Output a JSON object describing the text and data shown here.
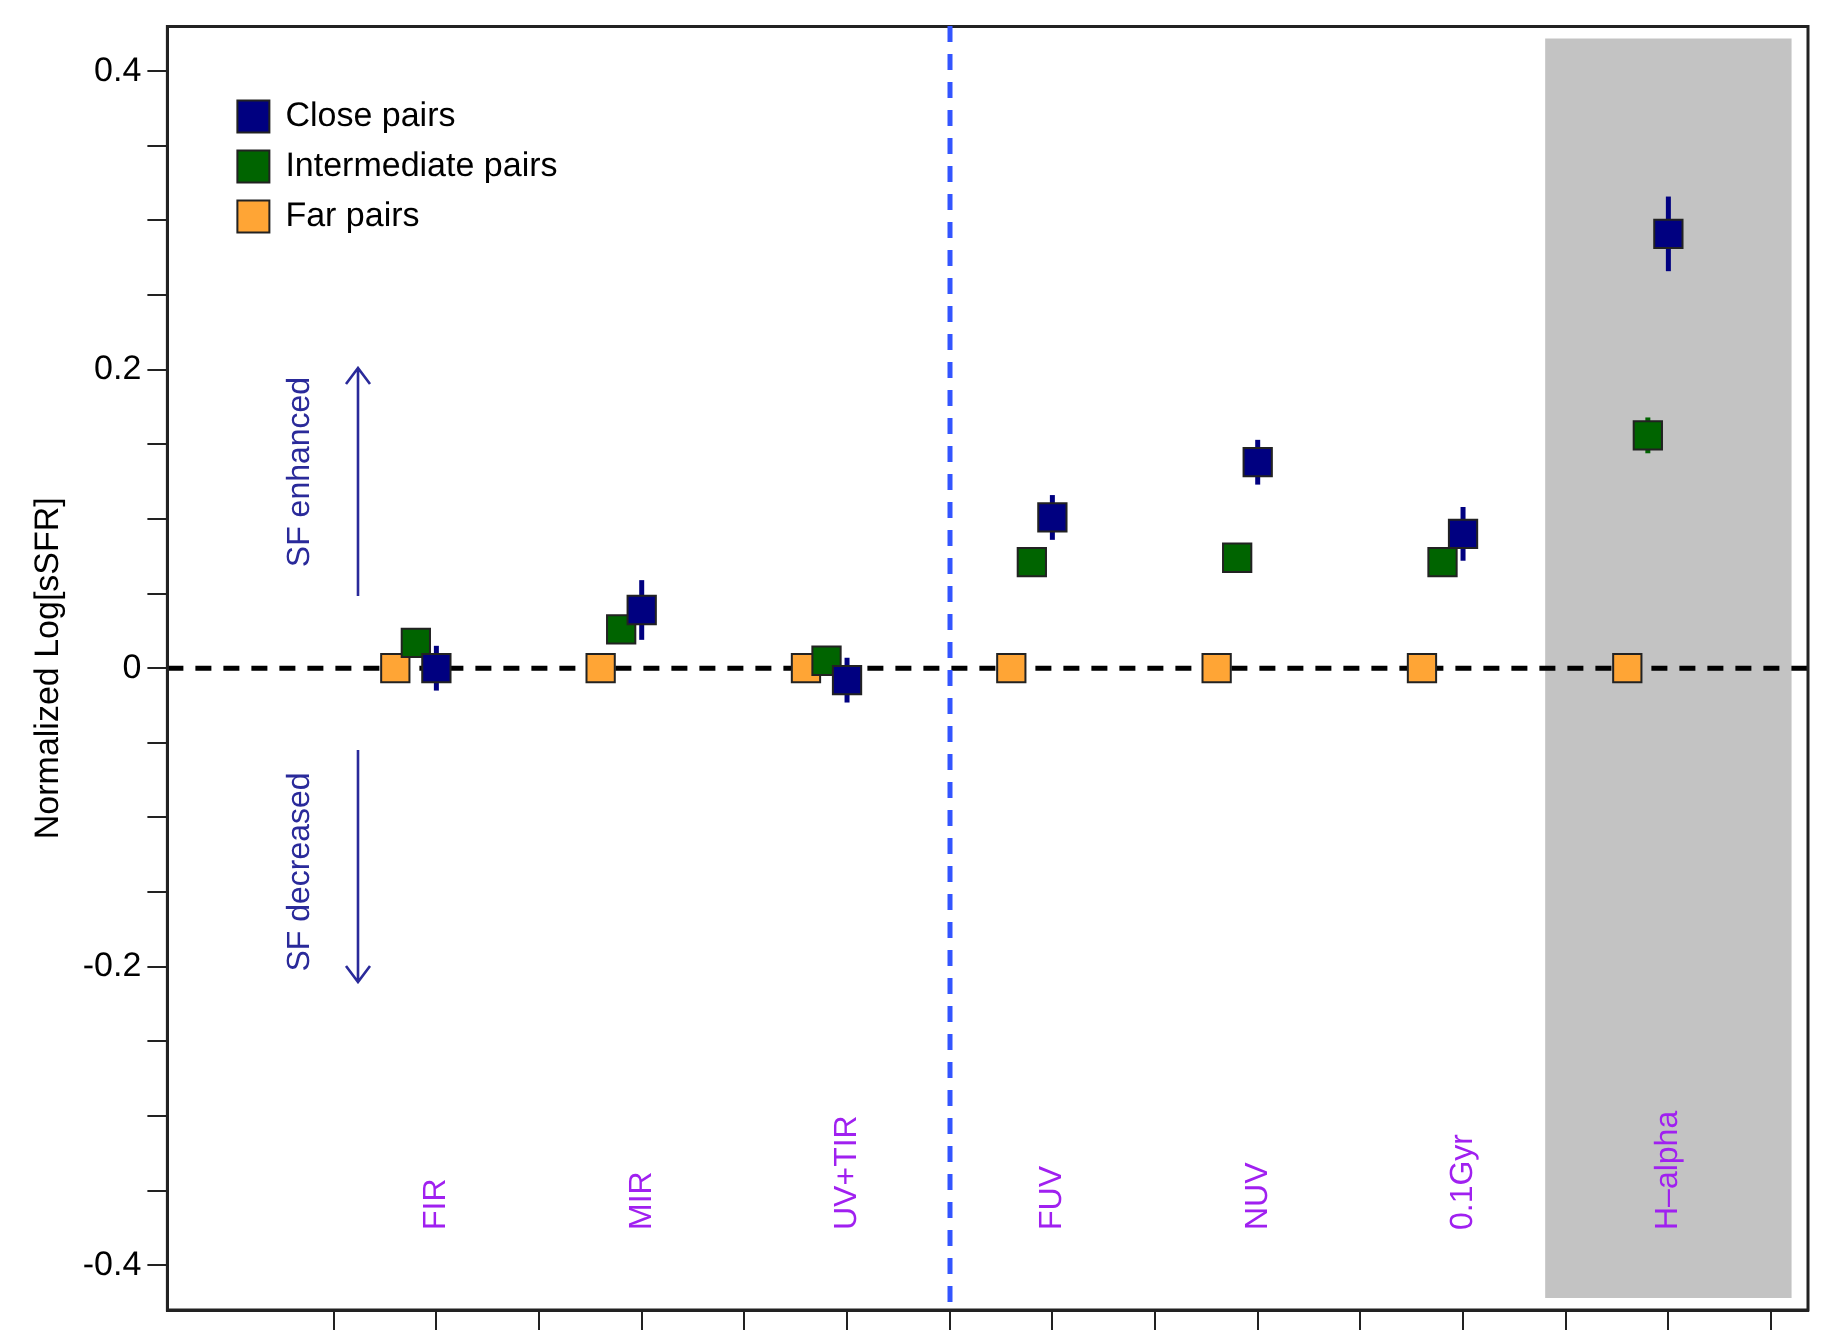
{
  "chart_data": {
    "type": "scatter",
    "ylabel": "Normalized Log[sSFR]",
    "categories": [
      "FIR",
      "MIR",
      "UV+TIR",
      "FUV",
      "NUV",
      "0.1Gyr",
      "H–alpha"
    ],
    "ylim": [
      -0.43,
      0.43
    ],
    "yticks": [
      -0.4,
      {
        "value": -0.35,
        "label": null
      },
      {
        "value": -0.3,
        "label": null
      },
      {
        "value": -0.25,
        "label": null
      },
      -0.2,
      {
        "value": -0.15,
        "label": null
      },
      {
        "value": -0.1,
        "label": null
      },
      {
        "value": -0.05,
        "label": null
      },
      0,
      {
        "value": 0.05,
        "label": null
      },
      {
        "value": 0.1,
        "label": null
      },
      {
        "value": 0.15,
        "label": null
      },
      0.2,
      {
        "value": 0.25,
        "label": null
      },
      {
        "value": 0.3,
        "label": null
      },
      {
        "value": 0.35,
        "label": null
      },
      0.4
    ],
    "grid": false,
    "legend": "top left",
    "marker": "square",
    "series": [
      {
        "name": "Close pairs",
        "color": "#000080",
        "values": [
          0.0,
          0.039,
          -0.008,
          0.101,
          0.138,
          0.09,
          0.291
        ],
        "errors": [
          0.015,
          0.02,
          0.015,
          0.015,
          0.015,
          0.018,
          0.025
        ]
      },
      {
        "name": "Intermediate pairs",
        "color": "#006400",
        "values": [
          0.017,
          0.026,
          0.005,
          0.071,
          0.074,
          0.071,
          0.156
        ],
        "errors": [
          null,
          null,
          null,
          null,
          null,
          null,
          0.012
        ]
      },
      {
        "name": "Far pairs",
        "color": "#ffa535",
        "values": [
          0,
          0,
          0,
          0,
          0,
          0,
          0
        ]
      }
    ],
    "ref_lines": [
      {
        "axis": "y",
        "value": 0,
        "color": "#000000",
        "line_style": "dashed"
      }
    ],
    "bands": [
      {
        "axis": "x",
        "from": "H–alpha",
        "to": "H–alpha",
        "color": "#c3c3c3"
      }
    ],
    "annotations": [
      "SF enhanced",
      "SF decreased"
    ]
  }
}
